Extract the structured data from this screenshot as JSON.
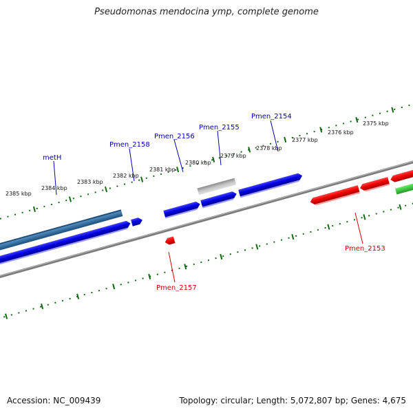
{
  "title": "Pseudomonas mendocina ymp, complete genome",
  "footer": {
    "accession": "Accession: NC_009439",
    "topology": "Topology: circular",
    "length": "Length: 5,072,807 bp",
    "genes": "Genes: 4,675"
  },
  "colors": {
    "forward": "#0000dd",
    "forward_dark": "#000088",
    "reverse": "#ee0000",
    "reverse_dark": "#990000",
    "rna": "#3a76a8",
    "pseudo": "#b4b4b4",
    "other": "#33bb33",
    "tick": "#116611",
    "backbone": "#888888",
    "label_blue": "#0000aa",
    "label_red": "#cc0000"
  },
  "ticks": {
    "upper": [
      "2385 kbp",
      "2384 kbp",
      "2383 kbp",
      "2382 kbp",
      "2381 kbp",
      "2380 kbp",
      "2379 kbp",
      "2378 kbp",
      "2377 kbp",
      "2376 kbp",
      "2375 kbp"
    ]
  },
  "labels": [
    {
      "id": "metH",
      "text": "metH",
      "color": "blue"
    },
    {
      "id": "pmen2158",
      "text": "Pmen_2158",
      "color": "blue"
    },
    {
      "id": "pmen2156",
      "text": "Pmen_2156",
      "color": "blue"
    },
    {
      "id": "pmen2155",
      "text": "Pmen_2155",
      "color": "blue"
    },
    {
      "id": "pmen2154",
      "text": "Pmen_2154",
      "color": "blue"
    },
    {
      "id": "pmen2157",
      "text": "Pmen_2157",
      "color": "red"
    },
    {
      "id": "pmen2153",
      "text": "Pmen_2153",
      "color": "red"
    }
  ]
}
